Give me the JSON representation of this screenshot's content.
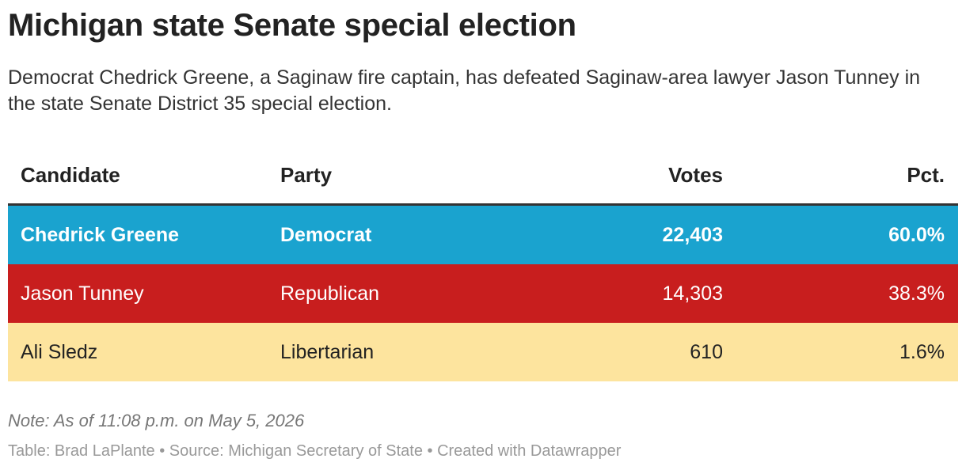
{
  "header": {
    "title": "Michigan state Senate special election",
    "description": "Democrat Chedrick Greene, a Saginaw fire captain, has defeated Saginaw-area lawyer Jason Tunney in the state Senate District 35 special election."
  },
  "table": {
    "columns": [
      "Candidate",
      "Party",
      "Votes",
      "Pct."
    ],
    "rows": [
      [
        "Chedrick Greene",
        "Democrat",
        "22,403",
        "60.0%"
      ],
      [
        "Jason Tunney",
        "Republican",
        "14,303",
        "38.3%"
      ],
      [
        "Ali Sledz",
        "Libertarian",
        "610",
        "1.6%"
      ]
    ],
    "row_colors": [
      "#1aa3cf",
      "#c81e1e",
      "#fde49e"
    ],
    "row_text_colors": [
      "#ffffff",
      "#ffffff",
      "#222222"
    ]
  },
  "footer": {
    "note": "Note: As of 11:08 p.m. on May 5, 2026",
    "credit": "Table: Brad LaPlante • Source: Michigan Secretary of State • Created with Datawrapper"
  }
}
